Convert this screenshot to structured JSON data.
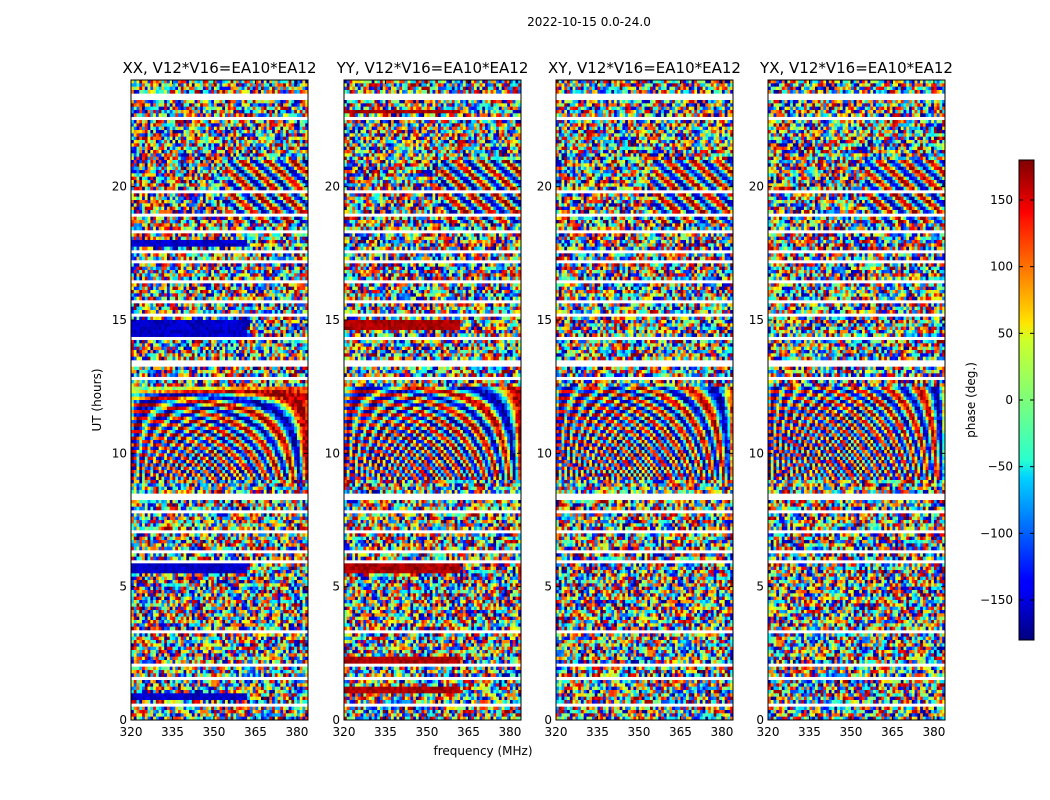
{
  "figure": {
    "suptitle": "2022-10-15 0.0-24.0"
  },
  "chart_data": {
    "type": "heatmap",
    "panels": [
      {
        "title": "XX, V12*V16=EA10*EA12",
        "corr": "XX"
      },
      {
        "title": "YY, V12*V16=EA10*EA12",
        "corr": "YY"
      },
      {
        "title": "XY, V12*V16=EA10*EA12",
        "corr": "XY"
      },
      {
        "title": "YX, V12*V16=EA10*EA12",
        "corr": "YX"
      }
    ],
    "xlabel": "frequency (MHz)",
    "ylabel": "UT (hours)",
    "xlim": [
      320,
      384
    ],
    "ylim": [
      0,
      24
    ],
    "xticks": [
      320,
      335,
      350,
      365,
      380
    ],
    "yticks": [
      0,
      5,
      10,
      15,
      20
    ],
    "colorbar": {
      "label": "phase (deg.)",
      "range": [
        -180,
        180
      ],
      "ticks": [
        150,
        100,
        50,
        0,
        -50,
        -100,
        -150
      ],
      "tick_labels": [
        "150",
        "100",
        "50",
        "0",
        "−50",
        "−100",
        "−150"
      ],
      "colormap": "jet"
    },
    "gaps_ut": [
      [
        0.45,
        0.6
      ],
      [
        1.55,
        1.65
      ],
      [
        2.0,
        2.1
      ],
      [
        2.95,
        3.05
      ],
      [
        3.3,
        3.4
      ],
      [
        4.2,
        4.3
      ],
      [
        4.45,
        4.55
      ],
      [
        5.9,
        6.0
      ],
      [
        6.25,
        6.35
      ],
      [
        7.05,
        7.15
      ],
      [
        7.75,
        7.85
      ],
      [
        8.3,
        8.5
      ],
      [
        12.8,
        12.9
      ],
      [
        13.3,
        13.55
      ],
      [
        14.3,
        14.4
      ],
      [
        15.1,
        15.2
      ],
      [
        15.6,
        15.7
      ],
      [
        16.4,
        16.5
      ],
      [
        17.1,
        17.2
      ],
      [
        17.55,
        17.65
      ],
      [
        18.3,
        18.4
      ],
      [
        18.9,
        19.0
      ],
      [
        19.8,
        19.9
      ],
      [
        21.7,
        21.8
      ],
      [
        22.5,
        22.6
      ],
      [
        23.3,
        23.5
      ]
    ]
  }
}
